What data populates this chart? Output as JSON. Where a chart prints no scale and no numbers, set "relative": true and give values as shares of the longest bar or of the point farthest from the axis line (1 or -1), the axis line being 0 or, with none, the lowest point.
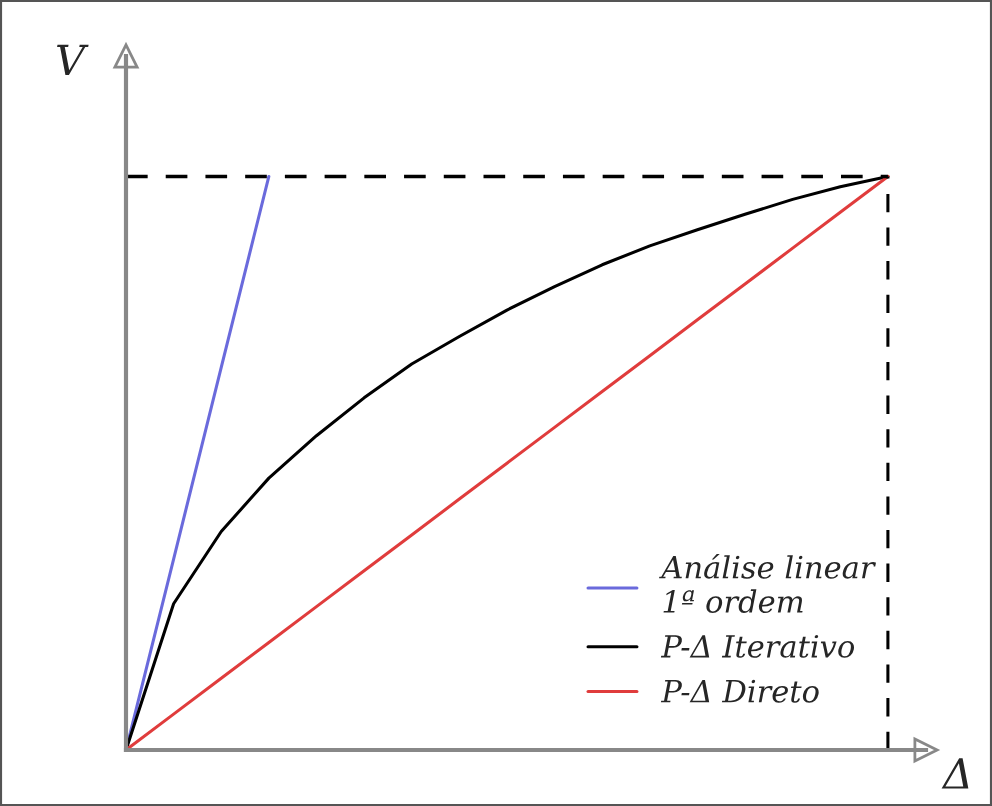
{
  "chart_data": {
    "type": "line",
    "relative": true,
    "xlabel": "Δ",
    "ylabel": "V",
    "legend": "bottom right",
    "categories": [
      null,
      null,
      null,
      null,
      null,
      null,
      null,
      null,
      null,
      null,
      null,
      null,
      null,
      null,
      null,
      null,
      null
    ],
    "series": [
      {
        "name": "Análise linear\n1ª ordem",
        "color": "#6a6adc",
        "values": [
          0,
          0.333,
          0.667,
          1,
          null,
          null,
          null,
          null,
          null,
          null,
          null,
          null,
          null,
          null,
          null,
          null,
          null
        ]
      },
      {
        "name": "P-Δ Iterativo",
        "color": "#000000",
        "values": [
          0,
          0.255,
          0.381,
          0.474,
          0.548,
          0.614,
          0.673,
          0.721,
          0.767,
          0.808,
          0.846,
          0.879,
          0.907,
          0.934,
          0.96,
          0.982,
          1
        ]
      },
      {
        "name": "P-Δ Direto",
        "color": "#e03c3c",
        "values": [
          0,
          0.0625,
          0.125,
          0.1875,
          0.25,
          0.3125,
          0.375,
          0.4375,
          0.5,
          0.5625,
          0.625,
          0.6875,
          0.75,
          0.8125,
          0.875,
          0.9375,
          1
        ]
      }
    ],
    "ref_lines": [
      {
        "axis": "y",
        "value": 1,
        "color": "#000000",
        "line_style": "dashed"
      },
      {
        "axis": "x",
        "color": "#000000",
        "line_style": "dashed"
      }
    ]
  }
}
